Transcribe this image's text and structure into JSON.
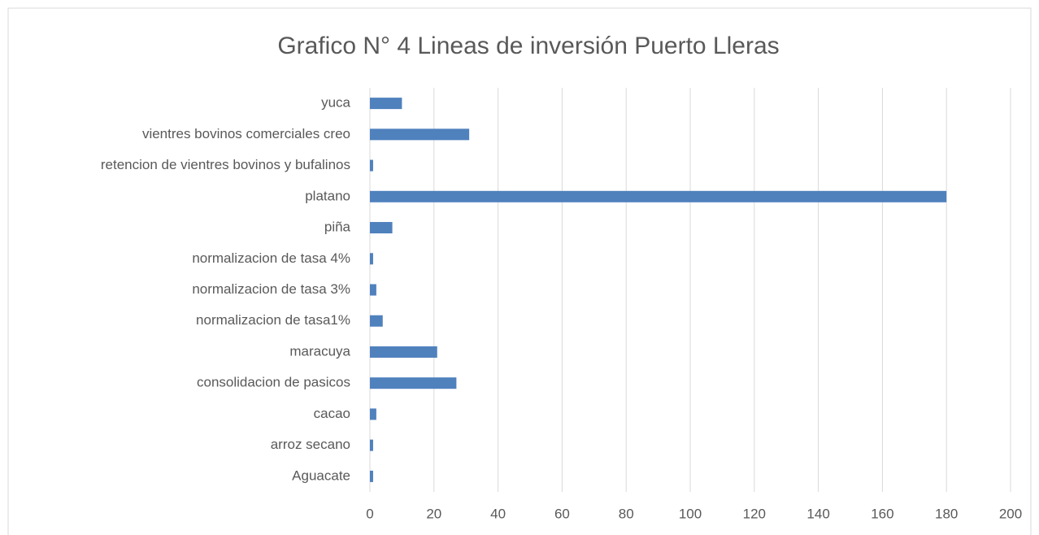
{
  "chart_data": {
    "type": "bar",
    "orientation": "horizontal",
    "title": "Grafico N° 4 Lineas de inversión Puerto Lleras",
    "categories": [
      "Aguacate",
      "arroz secano",
      "cacao",
      "consolidacion de pasicos",
      "maracuya",
      "normalizacion de tasa1%",
      "normalizacion de tasa 3%",
      "normalizacion de tasa 4%",
      "piña",
      "platano",
      "retencion de vientres bovinos y bufalinos",
      "vientres bovinos comerciales creo",
      "yuca"
    ],
    "values": [
      1,
      1,
      2,
      27,
      21,
      4,
      2,
      1,
      7,
      180,
      1,
      31,
      10
    ],
    "color": "#4f81bd",
    "xlim": [
      0,
      200
    ],
    "xticks": [
      0,
      20,
      40,
      60,
      80,
      100,
      120,
      140,
      160,
      180,
      200
    ],
    "grid": true
  }
}
